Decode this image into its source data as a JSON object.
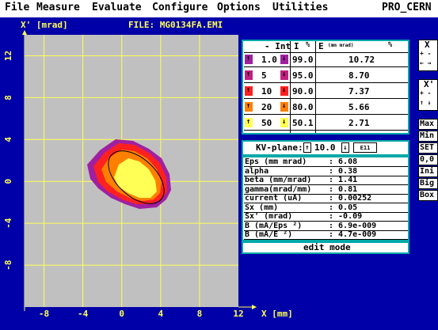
{
  "menu": [
    "File",
    "Measure",
    "Evaluate",
    "Configure",
    "Options",
    "Utilities",
    "PRO_CERN"
  ],
  "plot": {
    "y_label": "X' [mrad]",
    "file_label": "FILE: MG0134FA.EMI",
    "x_label": "X [mm]",
    "x_ticks": [
      "-8",
      "-4",
      "0",
      "4",
      "8",
      "12"
    ],
    "y_ticks": [
      "12",
      "8",
      "4",
      "0",
      "-4",
      "-8"
    ],
    "colors": {
      "bg": "#c0c0c0",
      "grid": "#ffff55",
      "red": "#ff2020",
      "orange": "#ff8000",
      "yellow": "#ffff55",
      "purple": "#a020a0",
      "ellipse": "#000000"
    }
  },
  "int_table": {
    "col_int": "- Int",
    "col_i": "I",
    "col_pct": "%",
    "col_e": "E",
    "col_e_unit": "(mm mrad)",
    "col_e_pct": "%",
    "rows": [
      {
        "int": "1.0",
        "i": "99.0",
        "e": "10.72",
        "color": "#a020a0"
      },
      {
        "int": "5",
        "i": "95.0",
        "e": "8.70",
        "color": "#c02080"
      },
      {
        "int": "10",
        "i": "90.0",
        "e": "7.37",
        "color": "#ff2020"
      },
      {
        "int": "20",
        "i": "80.0",
        "e": "5.66",
        "color": "#ff8000"
      },
      {
        "int": "50",
        "i": "50.1",
        "e": "2.71",
        "color": "#ffff55"
      }
    ]
  },
  "kv": {
    "label": "KV-plane:",
    "value": "10.0",
    "btn": "E11"
  },
  "params": [
    {
      "label": "Eps   (mm mrad)",
      "value": ": 6.08"
    },
    {
      "label": "alpha",
      "value": ": 0.38"
    },
    {
      "label": "beta (mm/mrad)",
      "value": ": 1.41"
    },
    {
      "label": "gamma(mrad/mm)",
      "value": ": 0.81"
    },
    {
      "label": "current     (uA)",
      "value": ": 0.00252"
    },
    {
      "label": "Sx            (mm)",
      "value": ": 0.05"
    },
    {
      "label": "Sx'        (mrad)",
      "value": ": -0.09"
    },
    {
      "label": "B     (mA/Eps ²)",
      "value": ": 6.9e-009"
    },
    {
      "label": "B        (mA/E ²)",
      "value": ": 4.7e-009"
    }
  ],
  "edit_mode": "edit mode",
  "side": {
    "x_label": "X",
    "xp_label": "X'",
    "pm": "+ -",
    "arrows": "← →",
    "arrows_v": "↑ ↓",
    "buttons": [
      "Max",
      "Min",
      "SET",
      "0,0",
      "Ini",
      "Big",
      "Box"
    ]
  }
}
